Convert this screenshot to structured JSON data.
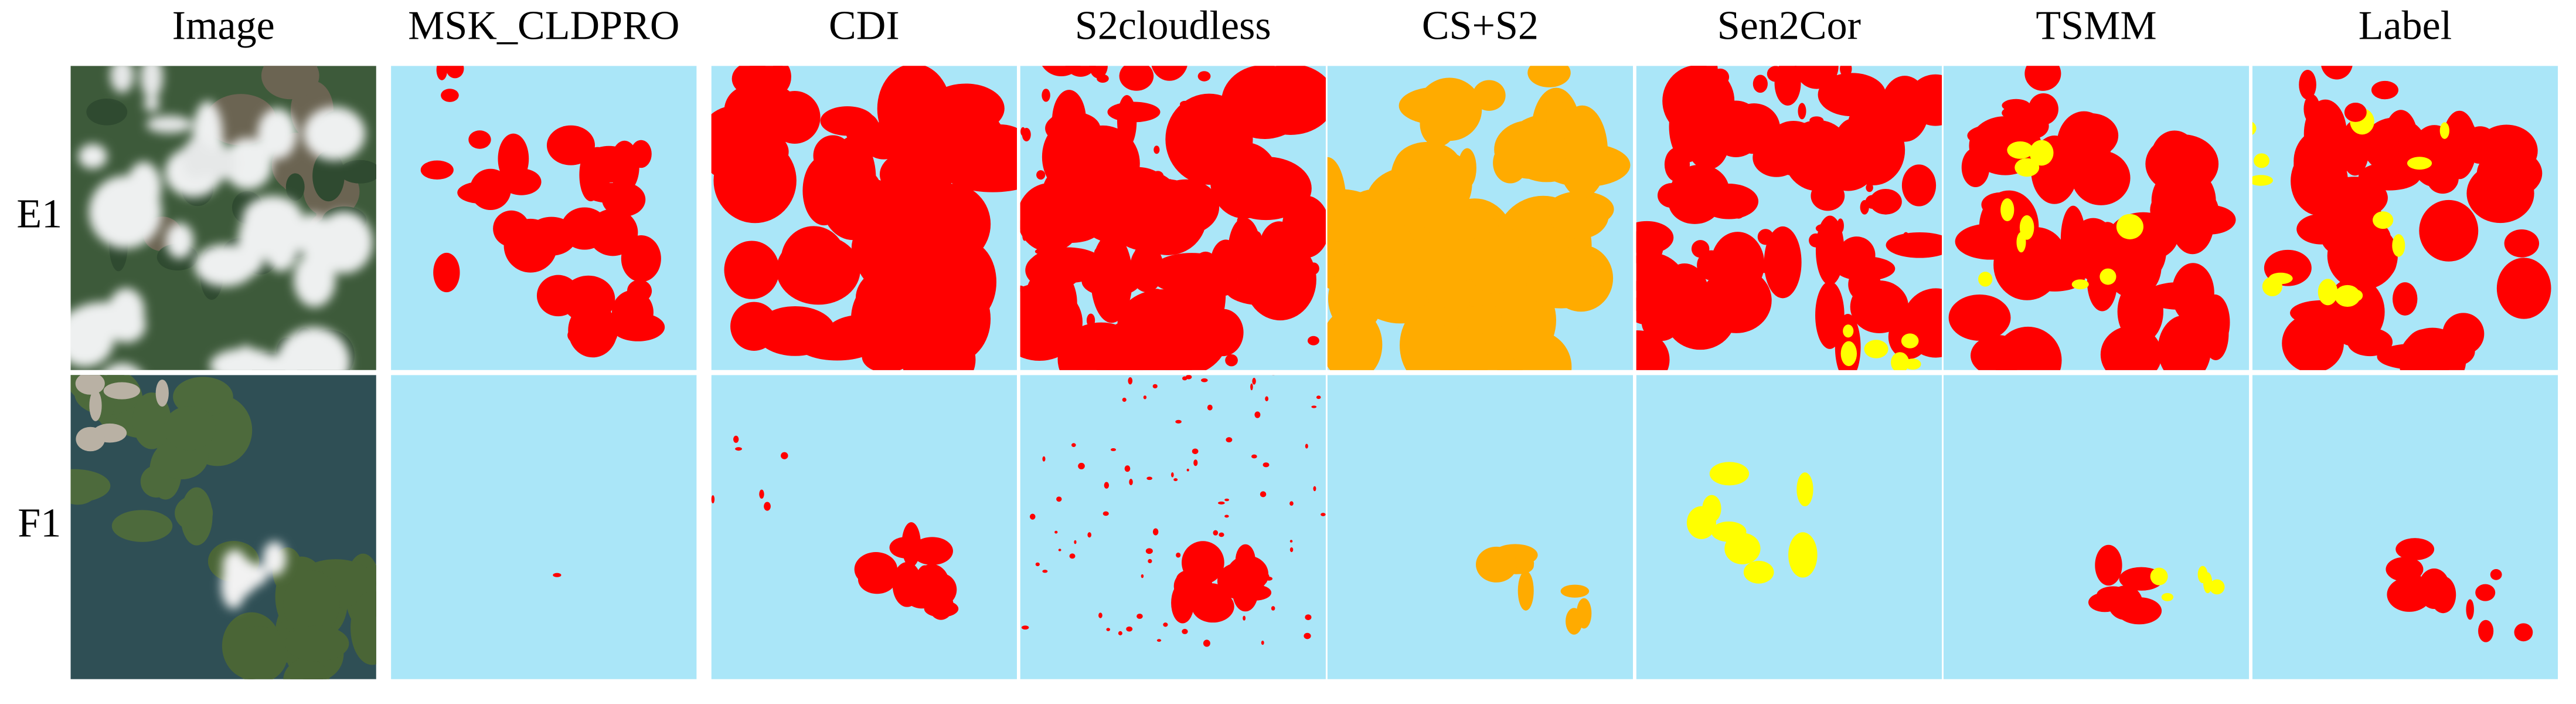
{
  "columns": [
    "Image",
    "MSK_CLDPRO",
    "CDI",
    "S2cloudless",
    "CS+S2",
    "Sen2Cor",
    "TSMM",
    "Label"
  ],
  "rows": [
    "E1",
    "F1"
  ]
}
